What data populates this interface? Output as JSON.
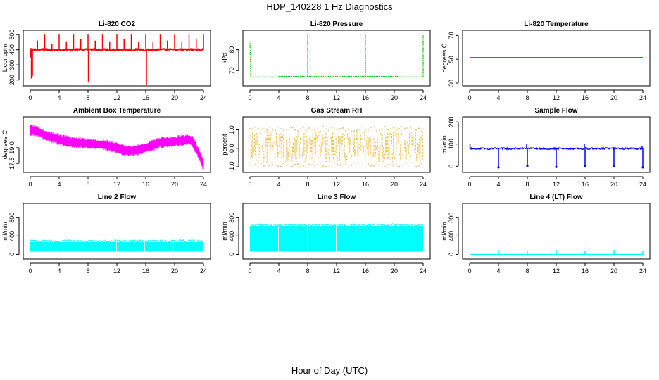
{
  "figure": {
    "title": "HDP_140228  1 Hz Diagnostics",
    "xlabel": "Hour of Day (UTC)"
  },
  "chart_data": [
    {
      "type": "line",
      "title": "Li-820 CO2",
      "ylabel": "Licor ppm",
      "color": "#ff0000",
      "xlim": [
        0,
        24
      ],
      "xticks": [
        0,
        4,
        8,
        12,
        16,
        20,
        24
      ],
      "ylim": [
        180,
        510
      ],
      "yticks": [
        200,
        300,
        400,
        500
      ],
      "ytick_labels": [
        "200",
        "300",
        "400",
        "500"
      ],
      "series": [
        {
          "baseline": 400,
          "noise": 6,
          "spikes": [
            {
              "x": 0.05,
              "y": 350
            },
            {
              "x": 0.15,
              "y": 210
            },
            {
              "x": 0.3,
              "y": 225
            },
            {
              "x": 1.0,
              "y": 460
            },
            {
              "x": 2.0,
              "y": 500
            },
            {
              "x": 3.0,
              "y": 440
            },
            {
              "x": 4.0,
              "y": 500
            },
            {
              "x": 5.0,
              "y": 455
            },
            {
              "x": 6.0,
              "y": 500
            },
            {
              "x": 7.0,
              "y": 470
            },
            {
              "x": 8.0,
              "y": 500
            },
            {
              "x": 8.05,
              "y": 190
            },
            {
              "x": 9.0,
              "y": 460
            },
            {
              "x": 10.0,
              "y": 500
            },
            {
              "x": 11.0,
              "y": 455
            },
            {
              "x": 12.0,
              "y": 500
            },
            {
              "x": 13.0,
              "y": 470
            },
            {
              "x": 14.0,
              "y": 500
            },
            {
              "x": 15.0,
              "y": 450
            },
            {
              "x": 16.0,
              "y": 500
            },
            {
              "x": 16.1,
              "y": 165
            },
            {
              "x": 17.0,
              "y": 455
            },
            {
              "x": 18.0,
              "y": 500
            },
            {
              "x": 19.0,
              "y": 460
            },
            {
              "x": 20.0,
              "y": 500
            },
            {
              "x": 21.0,
              "y": 455
            },
            {
              "x": 22.0,
              "y": 500
            },
            {
              "x": 23.0,
              "y": 470
            },
            {
              "x": 24.0,
              "y": 500
            }
          ]
        }
      ]
    },
    {
      "type": "line",
      "title": "Li-820 Pressure",
      "ylabel": "kPa",
      "color": "#00cc00",
      "dotted": true,
      "xlim": [
        0,
        24
      ],
      "xticks": [
        0,
        4,
        8,
        12,
        16,
        20,
        24
      ],
      "ylim": [
        64,
        88
      ],
      "yticks": [
        70,
        80
      ],
      "ytick_labels": [
        "70",
        "80"
      ],
      "series": [
        {
          "segments": [
            {
              "x": [
                0,
                0.1
              ],
              "y": [
                84,
                67
              ]
            },
            {
              "x": [
                0.2,
                4
              ],
              "y": [
                66.9,
                66.9
              ]
            },
            {
              "x": [
                4,
                20.5
              ],
              "y": [
                67.2,
                67.2
              ]
            },
            {
              "x": [
                20.5,
                23.9
              ],
              "y": [
                66.9,
                66.9
              ]
            }
          ],
          "spikes": [
            {
              "x": 8.0,
              "y": 87
            },
            {
              "x": 16.0,
              "y": 87
            },
            {
              "x": 24.0,
              "y": 87
            }
          ]
        }
      ]
    },
    {
      "type": "line",
      "title": "Li-820 Temperature",
      "ylabel": "degrees C",
      "color": "#cc00cc",
      "xlim": [
        0,
        24
      ],
      "xticks": [
        0,
        4,
        8,
        12,
        16,
        20,
        24
      ],
      "ylim": [
        30,
        72
      ],
      "yticks": [
        30,
        50,
        70
      ],
      "ytick_labels": [
        "30",
        "50",
        "70"
      ],
      "series": [
        {
          "x": [
            0,
            24
          ],
          "y": [
            51.5,
            51.5
          ]
        }
      ]
    },
    {
      "type": "line",
      "title": "Ambient Box Temperature",
      "ylabel": "degrees C",
      "color": "#ff00ff",
      "xlim": [
        0,
        24
      ],
      "xticks": [
        0,
        4,
        8,
        12,
        16,
        20,
        24
      ],
      "ylim": [
        16.9,
        21.7
      ],
      "yticks": [
        17.5,
        19.0
      ],
      "ytick_labels": [
        "17.5",
        "19.0"
      ],
      "series": [
        {
          "x": [
            0,
            1,
            2,
            4,
            6,
            8,
            10,
            12,
            13,
            14,
            15,
            16,
            18,
            20,
            22,
            22.5,
            23,
            23.5,
            24
          ],
          "y": [
            20.7,
            20.6,
            20.2,
            19.8,
            19.5,
            19.4,
            19.3,
            19.0,
            18.75,
            18.7,
            18.8,
            19.0,
            19.5,
            19.6,
            19.8,
            19.6,
            18.9,
            18.2,
            17.3
          ],
          "band": 0.55
        }
      ]
    },
    {
      "type": "scatter",
      "title": "Gas Stream RH",
      "ylabel": "percent",
      "color": "#e6a800",
      "xlim": [
        0,
        24
      ],
      "xticks": [
        0,
        4,
        8,
        12,
        16,
        20,
        24
      ],
      "ylim": [
        -1.15,
        1.55
      ],
      "yticks": [
        -1.0,
        0.0,
        1.0
      ],
      "ytick_labels": [
        "-1.0",
        "0.0",
        "1.0"
      ],
      "series": [
        {
          "center": 0.1,
          "band": 0.85,
          "outlier": 1.05
        }
      ]
    },
    {
      "type": "line",
      "title": "Sample Flow",
      "ylabel": "ml/min",
      "color": "#0000ff",
      "xlim": [
        0,
        24
      ],
      "xticks": [
        0,
        4,
        8,
        12,
        16,
        20,
        24
      ],
      "ylim": [
        -15,
        210
      ],
      "yticks": [
        0,
        100,
        200
      ],
      "ytick_labels": [
        "0",
        "100",
        "200"
      ],
      "series": [
        {
          "baseline": 80,
          "noise": 4,
          "spikes": [
            {
              "x": 0.05,
              "y": 100
            },
            {
              "x": 3.9,
              "y": 78
            },
            {
              "x": 4.0,
              "y": -5
            },
            {
              "x": 7.9,
              "y": 100
            },
            {
              "x": 8.0,
              "y": 2
            },
            {
              "x": 11.9,
              "y": 80
            },
            {
              "x": 12.0,
              "y": -3
            },
            {
              "x": 15.9,
              "y": 102
            },
            {
              "x": 16.0,
              "y": 0
            },
            {
              "x": 19.9,
              "y": 80
            },
            {
              "x": 20.0,
              "y": 0
            },
            {
              "x": 23.9,
              "y": 90
            },
            {
              "x": 24.0,
              "y": -5
            }
          ]
        }
      ]
    },
    {
      "type": "area",
      "title": "Line 2 Flow",
      "ylabel": "ml/min",
      "color": "#00ffff",
      "xlim": [
        0,
        24
      ],
      "xticks": [
        0,
        4,
        8,
        12,
        16,
        20,
        24
      ],
      "ylim": [
        -40,
        1050
      ],
      "yticks": [
        0,
        400,
        800
      ],
      "ytick_labels": [
        "0",
        "400",
        "800"
      ],
      "series": [
        {
          "x_start": 0,
          "x_end": 24,
          "low": 60,
          "high": 270,
          "gaps": [
            3.8,
            11.9,
            15.8,
            19.8
          ]
        }
      ]
    },
    {
      "type": "area",
      "title": "Line 3 Flow",
      "ylabel": "ml/min",
      "color": "#00ffff",
      "xlim": [
        0,
        24
      ],
      "xticks": [
        0,
        4,
        8,
        12,
        16,
        20,
        24
      ],
      "ylim": [
        -40,
        1050
      ],
      "yticks": [
        0,
        400,
        800
      ],
      "ytick_labels": [
        "0",
        "400",
        "800"
      ],
      "series": [
        {
          "x_start": 0,
          "x_end": 24,
          "low": 60,
          "high": 620,
          "gaps": [
            3.9,
            7.9,
            11.9,
            15.9,
            19.9
          ]
        }
      ]
    },
    {
      "type": "line",
      "title": "Line 4 (LT) Flow",
      "ylabel": "ml/min",
      "color": "#00ffff",
      "xlim": [
        0,
        24
      ],
      "xticks": [
        0,
        4,
        8,
        12,
        16,
        20,
        24
      ],
      "ylim": [
        -40,
        1050
      ],
      "yticks": [
        0,
        400,
        800
      ],
      "ytick_labels": [
        "0",
        "400",
        "800"
      ],
      "series": [
        {
          "baseline": 0,
          "noise": 0,
          "spikes": [
            {
              "x": 4.0,
              "y": 100
            },
            {
              "x": 8.0,
              "y": 70
            },
            {
              "x": 12.0,
              "y": 100
            },
            {
              "x": 16.0,
              "y": 70
            },
            {
              "x": 20.0,
              "y": 100
            },
            {
              "x": 24.0,
              "y": 70
            }
          ]
        }
      ]
    }
  ]
}
